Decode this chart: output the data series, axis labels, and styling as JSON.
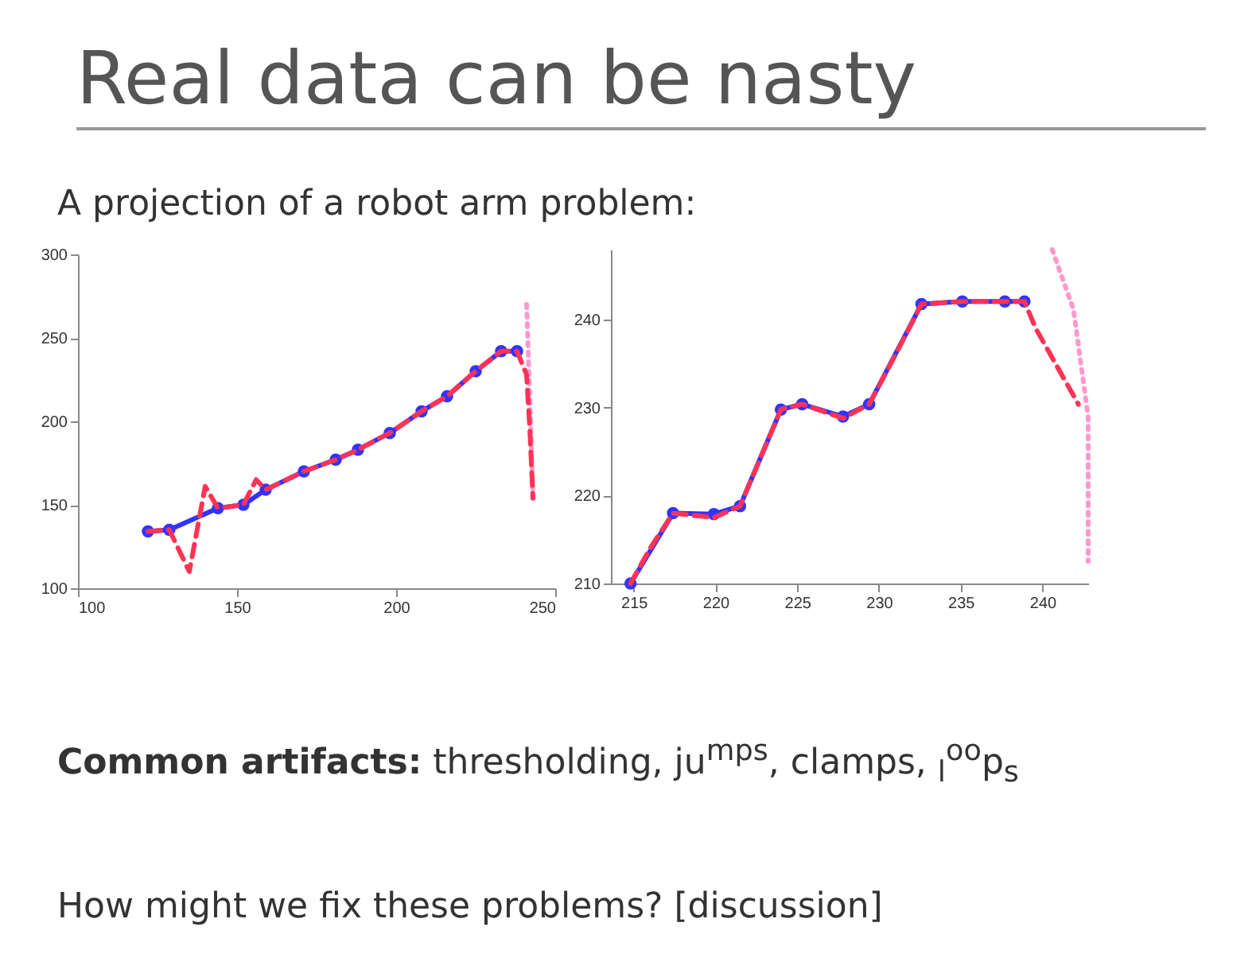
{
  "chart_data": [
    {
      "type": "line",
      "title": "Real data can be nasty",
      "subtitle": "A projection of a robot arm problem:",
      "annotations": [
        "Common artifacts: thresholding, ju$^{mps}$, clamps, $_{l}$$^{oo}$p$_{s}$",
        "How might we fix these problems? [discussion]"
      ],
      "xlim": [
        100,
        250
      ],
      "xticks": [
        100,
        150,
        200,
        250
      ],
      "ylim": [
        100,
        300
      ],
      "yticks": [
        100,
        150,
        200,
        250,
        300
      ],
      "grid": false,
      "series": [
        {
          "color": "#ff99cc",
          "line_style": "dotted",
          "marker": "none",
          "x": [
            241,
            242,
            243
          ],
          "values": [
            270,
            215,
            154
          ]
        },
        {
          "color": "#3333ff",
          "line_style": "solid",
          "marker": "circle",
          "x": [
            122,
            128.7,
            144,
            152,
            159,
            171,
            181,
            188,
            198,
            208,
            216,
            225,
            233,
            238
          ],
          "values": [
            134,
            135,
            148,
            150,
            159,
            170,
            177,
            183,
            193,
            206,
            215,
            230,
            242,
            242
          ]
        },
        {
          "color": "#ff3355",
          "line_style": "dashed",
          "marker": "none",
          "x": [
            122,
            128.7,
            135,
            140,
            144,
            152,
            156,
            159,
            171,
            181,
            188,
            198,
            208,
            216,
            225,
            233,
            238,
            241,
            242,
            243
          ],
          "values": [
            134,
            135,
            110,
            161,
            148,
            150,
            165,
            159,
            170,
            177,
            183,
            193,
            206,
            215,
            230,
            242,
            242,
            228,
            196,
            154
          ]
        }
      ]
    },
    {
      "type": "line",
      "xlim": [
        213.6,
        242.8
      ],
      "xticks": [
        215,
        220,
        225,
        230,
        235,
        240
      ],
      "ylim": [
        210,
        248
      ],
      "yticks": [
        210,
        220,
        230,
        240
      ],
      "grid": false,
      "series": [
        {
          "color": "#ff99cc",
          "line_style": "dotted",
          "marker": "none",
          "x": [
            240.6,
            241.9,
            242.8,
            242.8
          ],
          "values": [
            248,
            241.2,
            229,
            212.5
          ]
        },
        {
          "color": "#3333ff",
          "line_style": "solid",
          "marker": "circle",
          "x": [
            214.8,
            217.4,
            219.9,
            221.5,
            224,
            225.3,
            227.8,
            229.4,
            232.6,
            235.1,
            237.7,
            238.9
          ],
          "values": [
            210,
            218,
            217.9,
            218.8,
            229.8,
            230.4,
            229,
            230.4,
            241.8,
            242.1,
            242.1,
            242.1
          ]
        },
        {
          "color": "#ff3355",
          "line_style": "dashed",
          "marker": "none",
          "x": [
            214.8,
            216,
            217.4,
            219.9,
            221.5,
            224,
            225.3,
            227.8,
            229.4,
            231,
            232.6,
            235.1,
            237.7,
            238.9,
            239.6,
            240.9,
            242.2
          ],
          "values": [
            210,
            214,
            218,
            217.5,
            218.8,
            229.8,
            230.4,
            228.8,
            230.4,
            236,
            241.8,
            242.1,
            242.1,
            242.1,
            239,
            234.7,
            230.4
          ]
        }
      ]
    }
  ]
}
